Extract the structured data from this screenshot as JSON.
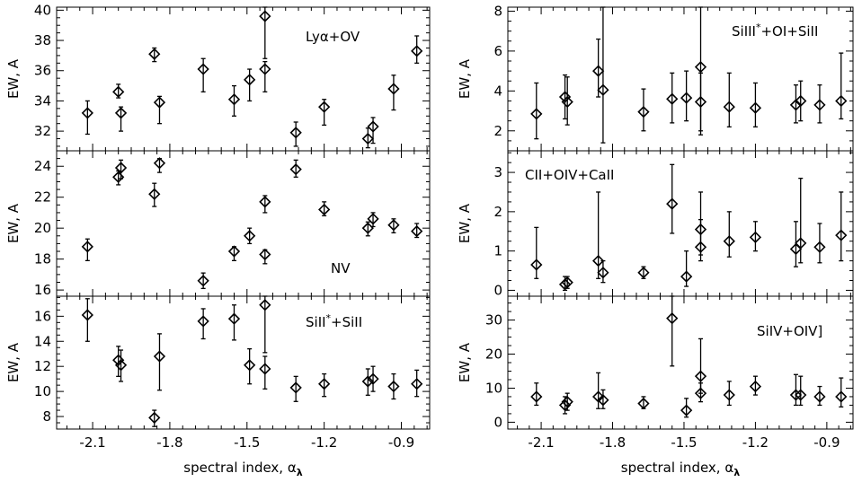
{
  "chart_data": [
    {
      "type": "scatter",
      "panel": "left-top",
      "label": "Lyα+OV",
      "ylabel": "EW, A",
      "xlabel": "",
      "xlim": [
        -2.24,
        -0.79
      ],
      "ylim": [
        30.7,
        40.2
      ],
      "xticks": [
        -2.1,
        -1.8,
        -1.5,
        -1.2,
        -0.9
      ],
      "xticklabels": [
        "",
        "",
        "",
        "",
        ""
      ],
      "yticks": [
        32,
        34,
        36,
        38,
        40
      ],
      "yticklabels": [
        "32",
        "34",
        "36",
        "38",
        "40"
      ],
      "points": [
        {
          "x": -2.12,
          "y": 33.2,
          "lo": 31.8,
          "hi": 34.0
        },
        {
          "x": -2.0,
          "y": 34.6,
          "lo": 34.2,
          "hi": 35.1
        },
        {
          "x": -1.99,
          "y": 33.2,
          "lo": 32.0,
          "hi": 33.6
        },
        {
          "x": -1.86,
          "y": 37.1,
          "lo": 36.6,
          "hi": 37.5
        },
        {
          "x": -1.84,
          "y": 33.9,
          "lo": 32.5,
          "hi": 34.3
        },
        {
          "x": -1.67,
          "y": 36.1,
          "lo": 34.6,
          "hi": 36.8
        },
        {
          "x": -1.55,
          "y": 34.1,
          "lo": 33.0,
          "hi": 35.0
        },
        {
          "x": -1.49,
          "y": 35.4,
          "lo": 34.0,
          "hi": 36.1
        },
        {
          "x": -1.43,
          "y": 39.6,
          "lo": 36.8,
          "hi": 40.2
        },
        {
          "x": -1.43,
          "y": 36.1,
          "lo": 34.6,
          "hi": 36.6
        },
        {
          "x": -1.31,
          "y": 31.9,
          "lo": 31.0,
          "hi": 32.6
        },
        {
          "x": -1.2,
          "y": 33.6,
          "lo": 32.4,
          "hi": 34.1
        },
        {
          "x": -1.03,
          "y": 31.5,
          "lo": 30.9,
          "hi": 32.2
        },
        {
          "x": -1.01,
          "y": 32.3,
          "lo": 31.2,
          "hi": 32.9
        },
        {
          "x": -0.93,
          "y": 34.8,
          "lo": 33.4,
          "hi": 35.7
        },
        {
          "x": -0.84,
          "y": 37.3,
          "lo": 36.5,
          "hi": 38.3
        }
      ]
    },
    {
      "type": "scatter",
      "panel": "left-middle",
      "label": "NV",
      "ylabel": "EW, A",
      "xlabel": "",
      "xlim": [
        -2.24,
        -0.79
      ],
      "ylim": [
        15.6,
        25.0
      ],
      "xticks": [
        -2.1,
        -1.8,
        -1.5,
        -1.2,
        -0.9
      ],
      "xticklabels": [
        "",
        "",
        "",
        "",
        ""
      ],
      "yticks": [
        16,
        18,
        20,
        22,
        24
      ],
      "yticklabels": [
        "16",
        "18",
        "20",
        "22",
        "24"
      ],
      "points": [
        {
          "x": -2.12,
          "y": 18.8,
          "lo": 17.9,
          "hi": 19.3
        },
        {
          "x": -2.0,
          "y": 23.3,
          "lo": 22.8,
          "hi": 23.7
        },
        {
          "x": -1.99,
          "y": 23.9,
          "lo": 23.2,
          "hi": 24.4
        },
        {
          "x": -1.86,
          "y": 22.2,
          "lo": 21.4,
          "hi": 22.9
        },
        {
          "x": -1.84,
          "y": 24.2,
          "lo": 23.6,
          "hi": 24.5
        },
        {
          "x": -1.67,
          "y": 16.6,
          "lo": 16.1,
          "hi": 17.1
        },
        {
          "x": -1.55,
          "y": 18.5,
          "lo": 17.9,
          "hi": 18.8
        },
        {
          "x": -1.49,
          "y": 19.5,
          "lo": 19.0,
          "hi": 20.0
        },
        {
          "x": -1.43,
          "y": 21.7,
          "lo": 21.0,
          "hi": 22.1
        },
        {
          "x": -1.43,
          "y": 18.3,
          "lo": 17.7,
          "hi": 18.6
        },
        {
          "x": -1.31,
          "y": 23.8,
          "lo": 23.3,
          "hi": 24.4
        },
        {
          "x": -1.2,
          "y": 21.2,
          "lo": 20.8,
          "hi": 21.7
        },
        {
          "x": -1.03,
          "y": 20.0,
          "lo": 19.5,
          "hi": 20.4
        },
        {
          "x": -1.01,
          "y": 20.6,
          "lo": 20.1,
          "hi": 21.0
        },
        {
          "x": -0.93,
          "y": 20.2,
          "lo": 19.7,
          "hi": 20.6
        },
        {
          "x": -0.84,
          "y": 19.8,
          "lo": 19.4,
          "hi": 20.3
        }
      ]
    },
    {
      "type": "scatter",
      "panel": "left-bottom",
      "label": "SiII*+SiII",
      "ylabel": "EW, A",
      "xlabel": "spectral index, α_λ",
      "xlim": [
        -2.24,
        -0.79
      ],
      "ylim": [
        7.0,
        17.6
      ],
      "xticks": [
        -2.1,
        -1.8,
        -1.5,
        -1.2,
        -0.9
      ],
      "xticklabels": [
        "-2.1",
        "-1.8",
        "-1.5",
        "-1.2",
        "-0.9"
      ],
      "yticks": [
        8,
        10,
        12,
        14,
        16
      ],
      "yticklabels": [
        "8",
        "10",
        "12",
        "14",
        "16"
      ],
      "points": [
        {
          "x": -2.12,
          "y": 16.1,
          "lo": 14.0,
          "hi": 17.4
        },
        {
          "x": -2.0,
          "y": 12.5,
          "lo": 11.2,
          "hi": 13.6
        },
        {
          "x": -1.99,
          "y": 12.1,
          "lo": 10.8,
          "hi": 13.3
        },
        {
          "x": -1.86,
          "y": 7.9,
          "lo": 7.2,
          "hi": 8.5
        },
        {
          "x": -1.84,
          "y": 12.8,
          "lo": 10.1,
          "hi": 14.6
        },
        {
          "x": -1.67,
          "y": 15.6,
          "lo": 14.2,
          "hi": 16.6
        },
        {
          "x": -1.55,
          "y": 15.8,
          "lo": 14.1,
          "hi": 16.9
        },
        {
          "x": -1.49,
          "y": 12.1,
          "lo": 10.6,
          "hi": 13.4
        },
        {
          "x": -1.43,
          "y": 16.9,
          "lo": 13.1,
          "hi": 17.6
        },
        {
          "x": -1.43,
          "y": 11.8,
          "lo": 10.2,
          "hi": 12.8
        },
        {
          "x": -1.31,
          "y": 10.3,
          "lo": 9.2,
          "hi": 11.2
        },
        {
          "x": -1.2,
          "y": 10.6,
          "lo": 9.6,
          "hi": 11.4
        },
        {
          "x": -1.03,
          "y": 10.8,
          "lo": 9.7,
          "hi": 11.8
        },
        {
          "x": -1.01,
          "y": 11.0,
          "lo": 10.0,
          "hi": 12.0
        },
        {
          "x": -0.93,
          "y": 10.4,
          "lo": 9.4,
          "hi": 11.4
        },
        {
          "x": -0.84,
          "y": 10.6,
          "lo": 9.6,
          "hi": 11.7
        }
      ]
    },
    {
      "type": "scatter",
      "panel": "right-top",
      "label": "SiIII*+OI+SiII",
      "ylabel": "EW, A",
      "xlabel": "",
      "xlim": [
        -2.24,
        -0.79
      ],
      "ylim": [
        1.0,
        8.2
      ],
      "xticks": [
        -2.1,
        -1.8,
        -1.5,
        -1.2,
        -0.9
      ],
      "xticklabels": [
        "",
        "",
        "",
        "",
        ""
      ],
      "yticks": [
        2,
        4,
        6,
        8
      ],
      "yticklabels": [
        "2",
        "4",
        "6",
        "8"
      ],
      "points": [
        {
          "x": -2.12,
          "y": 2.85,
          "lo": 1.6,
          "hi": 4.4
        },
        {
          "x": -2.0,
          "y": 3.7,
          "lo": 2.6,
          "hi": 4.8
        },
        {
          "x": -1.99,
          "y": 3.45,
          "lo": 2.3,
          "hi": 4.7
        },
        {
          "x": -1.86,
          "y": 5.0,
          "lo": 3.7,
          "hi": 6.6
        },
        {
          "x": -1.84,
          "y": 4.05,
          "lo": 1.4,
          "hi": 8.2
        },
        {
          "x": -1.67,
          "y": 2.95,
          "lo": 2.0,
          "hi": 4.1
        },
        {
          "x": -1.55,
          "y": 3.6,
          "lo": 2.4,
          "hi": 4.9
        },
        {
          "x": -1.49,
          "y": 3.65,
          "lo": 2.5,
          "hi": 5.0
        },
        {
          "x": -1.43,
          "y": 5.2,
          "lo": 2.0,
          "hi": 8.2
        },
        {
          "x": -1.43,
          "y": 3.45,
          "lo": 1.8,
          "hi": 4.9
        },
        {
          "x": -1.31,
          "y": 3.2,
          "lo": 2.2,
          "hi": 4.9
        },
        {
          "x": -1.2,
          "y": 3.15,
          "lo": 2.2,
          "hi": 4.4
        },
        {
          "x": -1.03,
          "y": 3.3,
          "lo": 2.4,
          "hi": 4.3
        },
        {
          "x": -1.01,
          "y": 3.5,
          "lo": 2.5,
          "hi": 4.5
        },
        {
          "x": -0.93,
          "y": 3.3,
          "lo": 2.4,
          "hi": 4.3
        },
        {
          "x": -0.84,
          "y": 3.5,
          "lo": 2.6,
          "hi": 5.9
        }
      ]
    },
    {
      "type": "scatter",
      "panel": "right-middle",
      "label": "CII+OIV+CaII",
      "ylabel": "EW, A",
      "xlabel": "",
      "xlim": [
        -2.24,
        -0.79
      ],
      "ylim": [
        -0.15,
        3.55
      ],
      "xticks": [
        -2.1,
        -1.8,
        -1.5,
        -1.2,
        -0.9
      ],
      "xticklabels": [
        "",
        "",
        "",
        "",
        ""
      ],
      "yticks": [
        0,
        1,
        2,
        3
      ],
      "yticklabels": [
        "0",
        "1",
        "2",
        "3"
      ],
      "points": [
        {
          "x": -2.12,
          "y": 0.65,
          "lo": 0.3,
          "hi": 1.6
        },
        {
          "x": -2.0,
          "y": 0.15,
          "lo": 0.0,
          "hi": 0.35
        },
        {
          "x": -1.99,
          "y": 0.2,
          "lo": 0.05,
          "hi": 0.35
        },
        {
          "x": -1.86,
          "y": 0.75,
          "lo": 0.3,
          "hi": 2.5
        },
        {
          "x": -1.84,
          "y": 0.45,
          "lo": 0.2,
          "hi": 0.75
        },
        {
          "x": -1.67,
          "y": 0.45,
          "lo": 0.3,
          "hi": 0.6
        },
        {
          "x": -1.55,
          "y": 2.2,
          "lo": 1.45,
          "hi": 3.2
        },
        {
          "x": -1.49,
          "y": 0.35,
          "lo": 0.1,
          "hi": 1.0
        },
        {
          "x": -1.43,
          "y": 1.55,
          "lo": 0.9,
          "hi": 2.5
        },
        {
          "x": -1.43,
          "y": 1.1,
          "lo": 0.75,
          "hi": 1.8
        },
        {
          "x": -1.31,
          "y": 1.25,
          "lo": 0.85,
          "hi": 2.0
        },
        {
          "x": -1.2,
          "y": 1.35,
          "lo": 1.0,
          "hi": 1.75
        },
        {
          "x": -1.03,
          "y": 1.05,
          "lo": 0.6,
          "hi": 1.75
        },
        {
          "x": -1.01,
          "y": 1.2,
          "lo": 0.7,
          "hi": 2.85
        },
        {
          "x": -0.93,
          "y": 1.1,
          "lo": 0.7,
          "hi": 1.7
        },
        {
          "x": -0.84,
          "y": 1.4,
          "lo": 0.75,
          "hi": 2.5
        }
      ]
    },
    {
      "type": "scatter",
      "panel": "right-bottom",
      "label": "SiIV+OIV]",
      "ylabel": "EW, A",
      "xlabel": "spectral index, α_λ",
      "xlim": [
        -2.24,
        -0.79
      ],
      "ylim": [
        -2,
        37
      ],
      "xticks": [
        -2.1,
        -1.8,
        -1.5,
        -1.2,
        -0.9
      ],
      "xticklabels": [
        "-2.1",
        "-1.8",
        "-1.5",
        "-1.2",
        "-0.9"
      ],
      "yticks": [
        0,
        10,
        20,
        30
      ],
      "yticklabels": [
        "0",
        "10",
        "20",
        "30"
      ],
      "points": [
        {
          "x": -2.12,
          "y": 7.5,
          "lo": 5.0,
          "hi": 11.5
        },
        {
          "x": -2.0,
          "y": 5.0,
          "lo": 2.5,
          "hi": 7.5
        },
        {
          "x": -1.99,
          "y": 6.0,
          "lo": 3.5,
          "hi": 8.5
        },
        {
          "x": -1.86,
          "y": 7.5,
          "lo": 4.0,
          "hi": 14.5
        },
        {
          "x": -1.84,
          "y": 6.5,
          "lo": 4.0,
          "hi": 9.5
        },
        {
          "x": -1.67,
          "y": 5.5,
          "lo": 4.0,
          "hi": 7.5
        },
        {
          "x": -1.55,
          "y": 30.5,
          "lo": 16.5,
          "hi": 37.0
        },
        {
          "x": -1.49,
          "y": 3.5,
          "lo": 1.5,
          "hi": 7.0
        },
        {
          "x": -1.43,
          "y": 13.5,
          "lo": 8.5,
          "hi": 24.5
        },
        {
          "x": -1.43,
          "y": 8.5,
          "lo": 6.0,
          "hi": 11.5
        },
        {
          "x": -1.31,
          "y": 8.0,
          "lo": 5.0,
          "hi": 12.0
        },
        {
          "x": -1.2,
          "y": 10.5,
          "lo": 8.0,
          "hi": 13.5
        },
        {
          "x": -1.03,
          "y": 8.0,
          "lo": 5.0,
          "hi": 14.0
        },
        {
          "x": -1.01,
          "y": 8.0,
          "lo": 5.0,
          "hi": 13.5
        },
        {
          "x": -0.93,
          "y": 7.5,
          "lo": 5.0,
          "hi": 10.5
        },
        {
          "x": -0.84,
          "y": 7.5,
          "lo": 4.5,
          "hi": 13.0
        }
      ]
    }
  ]
}
